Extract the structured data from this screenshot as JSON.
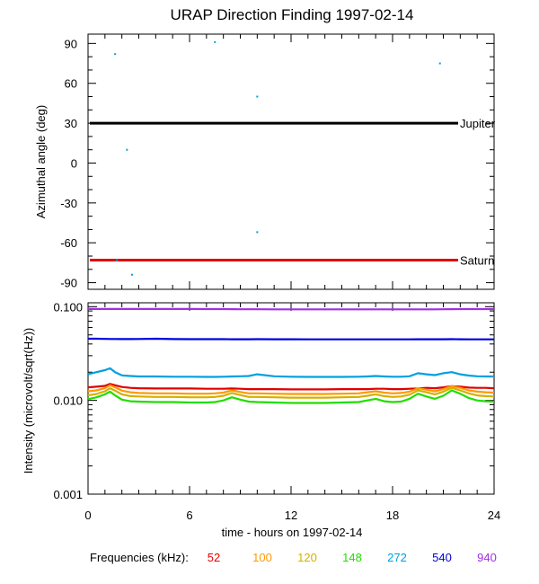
{
  "title": "URAP Direction Finding  1997-02-14",
  "chart_data": [
    {
      "type": "scatter",
      "panel": "top",
      "ylabel": "Azimuthal angle (deg)",
      "ylim": [
        -95,
        97
      ],
      "yticks": [
        90,
        60,
        30,
        0,
        -30,
        -60,
        -90
      ],
      "xlim": [
        0,
        24
      ],
      "grid": false,
      "reference_lines": [
        {
          "name": "Jupiter",
          "y": 30,
          "color": "#000000"
        },
        {
          "name": "Saturn",
          "y": -73,
          "color": "#e00000"
        }
      ],
      "points": [
        {
          "x": 1.6,
          "y": 82
        },
        {
          "x": 7.5,
          "y": 91
        },
        {
          "x": 10.0,
          "y": 50
        },
        {
          "x": 20.8,
          "y": 75
        },
        {
          "x": 2.3,
          "y": 10
        },
        {
          "x": 10.0,
          "y": -52
        },
        {
          "x": 1.7,
          "y": -73
        },
        {
          "x": 2.6,
          "y": -84
        }
      ],
      "point_color": "#00a0e0"
    },
    {
      "type": "line",
      "panel": "bottom",
      "ylabel": "Intensity (microvolt/sqrt(Hz))",
      "yscale": "log",
      "ylim": [
        0.001,
        0.11
      ],
      "yticks": [
        "0.100",
        "0.010",
        "0.001"
      ],
      "ytick_values": [
        0.1,
        0.01,
        0.001
      ],
      "xlabel": "time - hours on 1997-02-14",
      "xlim": [
        0,
        24
      ],
      "xticks": [
        0,
        6,
        12,
        18,
        24
      ],
      "grid": false,
      "legend_title": "Frequencies (kHz):",
      "legend_placement": "bottom",
      "series": [
        {
          "name": "52",
          "color": "#e00000",
          "base": 0.0136
        },
        {
          "name": "100",
          "color": "#ff9900",
          "base": 0.012
        },
        {
          "name": "120",
          "color": "#d4b000",
          "base": 0.011
        },
        {
          "name": "148",
          "color": "#22dd00",
          "base": 0.0097
        },
        {
          "name": "272",
          "color": "#00a0e0",
          "base": 0.018
        },
        {
          "name": "540",
          "color": "#0000e0",
          "base": 0.045
        },
        {
          "name": "940",
          "color": "#a030e0",
          "base": 0.094
        }
      ],
      "x": [
        0,
        0.5,
        1,
        1.3,
        1.6,
        2,
        2.5,
        3,
        4,
        5,
        6,
        7,
        7.5,
        8,
        8.5,
        9,
        9.5,
        10,
        11,
        12,
        13,
        14,
        15,
        16,
        16.5,
        17,
        17.5,
        18,
        18.5,
        19,
        19.5,
        20,
        20.5,
        21,
        21.5,
        22,
        22.5,
        23,
        23.5,
        24
      ],
      "values": {
        "52": [
          0.0138,
          0.014,
          0.0143,
          0.015,
          0.0145,
          0.0139,
          0.0136,
          0.0135,
          0.0134,
          0.0134,
          0.0134,
          0.0133,
          0.0133,
          0.0133,
          0.0134,
          0.0133,
          0.0132,
          0.0132,
          0.0132,
          0.0131,
          0.0131,
          0.0131,
          0.0132,
          0.0132,
          0.0132,
          0.0133,
          0.0133,
          0.0132,
          0.0132,
          0.0133,
          0.0134,
          0.0136,
          0.0135,
          0.0138,
          0.0142,
          0.014,
          0.0137,
          0.0136,
          0.0136,
          0.0135
        ],
        "100": [
          0.0125,
          0.0128,
          0.0135,
          0.0145,
          0.0138,
          0.0127,
          0.0122,
          0.012,
          0.0119,
          0.0119,
          0.0118,
          0.0118,
          0.0119,
          0.0121,
          0.0128,
          0.0123,
          0.0119,
          0.0119,
          0.0118,
          0.0117,
          0.0117,
          0.0117,
          0.0118,
          0.0119,
          0.0122,
          0.0125,
          0.0121,
          0.0119,
          0.012,
          0.0124,
          0.0135,
          0.013,
          0.0125,
          0.0132,
          0.0142,
          0.0136,
          0.0128,
          0.0124,
          0.0122,
          0.0121
        ],
        "120": [
          0.0113,
          0.0117,
          0.0125,
          0.0135,
          0.0127,
          0.0116,
          0.0111,
          0.011,
          0.0109,
          0.0109,
          0.0108,
          0.0108,
          0.0109,
          0.0112,
          0.012,
          0.0114,
          0.0109,
          0.0109,
          0.0108,
          0.0107,
          0.0107,
          0.0107,
          0.0108,
          0.0109,
          0.0112,
          0.0116,
          0.0111,
          0.0109,
          0.011,
          0.0115,
          0.0128,
          0.0122,
          0.0116,
          0.0124,
          0.0136,
          0.0128,
          0.0119,
          0.0113,
          0.0111,
          0.011
        ],
        "148": [
          0.0103,
          0.0108,
          0.0116,
          0.0124,
          0.0113,
          0.0102,
          0.0098,
          0.0097,
          0.0096,
          0.0096,
          0.0095,
          0.0095,
          0.0096,
          0.01,
          0.0108,
          0.0102,
          0.0097,
          0.0096,
          0.0095,
          0.0094,
          0.0094,
          0.0094,
          0.0095,
          0.0096,
          0.01,
          0.0104,
          0.0098,
          0.0096,
          0.0097,
          0.0104,
          0.0118,
          0.011,
          0.0104,
          0.0112,
          0.0128,
          0.0118,
          0.0106,
          0.01,
          0.0098,
          0.0097
        ],
        "272": [
          0.019,
          0.02,
          0.021,
          0.022,
          0.02,
          0.0185,
          0.0182,
          0.018,
          0.018,
          0.0179,
          0.0179,
          0.0178,
          0.0178,
          0.0179,
          0.018,
          0.0181,
          0.0182,
          0.019,
          0.0181,
          0.0179,
          0.0178,
          0.0178,
          0.0178,
          0.0179,
          0.018,
          0.0182,
          0.018,
          0.0179,
          0.0179,
          0.0181,
          0.0195,
          0.019,
          0.0186,
          0.0195,
          0.02,
          0.019,
          0.0184,
          0.0181,
          0.018,
          0.018
        ],
        "540": [
          0.0455,
          0.0455,
          0.0453,
          0.0452,
          0.0452,
          0.0451,
          0.0451,
          0.0452,
          0.0455,
          0.0451,
          0.045,
          0.045,
          0.045,
          0.045,
          0.0449,
          0.0449,
          0.0449,
          0.045,
          0.0449,
          0.0449,
          0.0448,
          0.0448,
          0.0448,
          0.0448,
          0.0448,
          0.0448,
          0.0448,
          0.0448,
          0.0448,
          0.0448,
          0.0449,
          0.0449,
          0.0449,
          0.0449,
          0.045,
          0.0449,
          0.0448,
          0.0448,
          0.0448,
          0.0448
        ],
        "940": [
          0.0945,
          0.0945,
          0.0944,
          0.0944,
          0.0944,
          0.0944,
          0.0944,
          0.0944,
          0.0944,
          0.0944,
          0.0944,
          0.0943,
          0.0943,
          0.0943,
          0.094,
          0.0938,
          0.0938,
          0.0938,
          0.0937,
          0.0937,
          0.0937,
          0.0937,
          0.0937,
          0.0937,
          0.0937,
          0.0937,
          0.0937,
          0.0937,
          0.0937,
          0.0937,
          0.0937,
          0.0937,
          0.0937,
          0.0938,
          0.094,
          0.0942,
          0.0943,
          0.0943,
          0.0943,
          0.0943
        ]
      }
    }
  ]
}
